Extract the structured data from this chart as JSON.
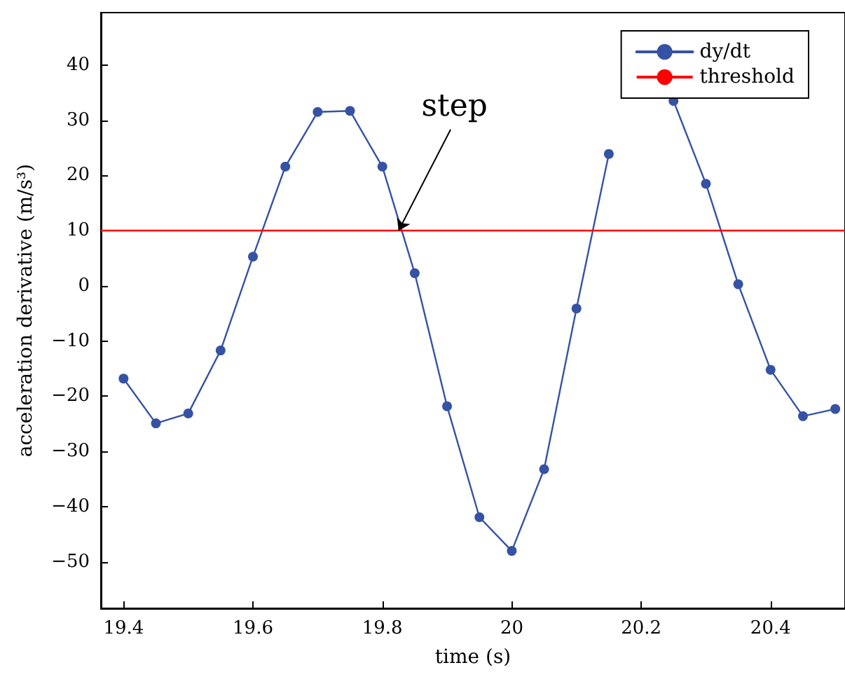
{
  "chart_data": {
    "type": "line",
    "xlabel": "time (s)",
    "ylabel": "acceleration derivative (m/s³)",
    "x": [
      19.4,
      19.45,
      19.5,
      19.55,
      19.6,
      19.65,
      19.7,
      19.75,
      19.8,
      19.85,
      19.9,
      19.95,
      20.0,
      20.05,
      20.1,
      20.15,
      20.2,
      20.25,
      20.3,
      20.35,
      20.4,
      20.45,
      20.5
    ],
    "series": [
      {
        "name": "dy/dt",
        "color": "#3652a5",
        "values": [
          -16.8,
          -24.9,
          -23.1,
          -11.7,
          5.3,
          21.6,
          31.5,
          31.7,
          21.6,
          2.3,
          -21.8,
          -41.9,
          -48,
          -33.2,
          -4.1,
          23.9,
          null,
          33.5,
          18.5,
          0.3,
          -15.2,
          -23.6,
          -22.3
        ]
      }
    ],
    "xlim": [
      19.365,
      20.515
    ],
    "xticks": [
      19.4,
      19.6,
      19.8,
      20,
      20.2,
      20.4
    ],
    "ylim": [
      -58.4,
      49.5
    ],
    "yticks": [
      -50,
      -40,
      -30,
      -20,
      -10,
      0,
      10,
      20,
      30,
      40
    ],
    "ref_lines": [
      {
        "axis": "y",
        "value": 10,
        "label": "threshold",
        "color": "#ff0000"
      }
    ],
    "annotations": [
      {
        "text": "step",
        "x": 19.825,
        "y": 10
      }
    ],
    "grid": false,
    "legend": "top right",
    "marker": "circle",
    "line_style": "solid"
  }
}
